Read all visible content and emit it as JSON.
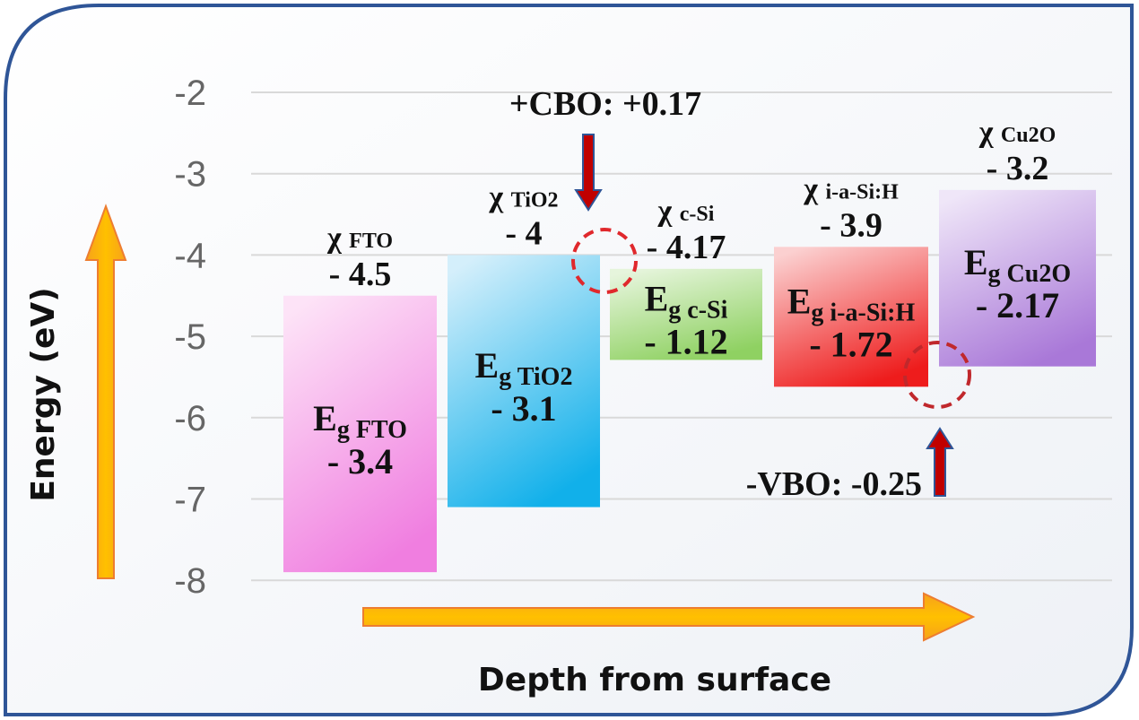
{
  "chart_data": {
    "type": "bar",
    "title": "",
    "xlabel": "Depth from surface",
    "ylabel": "Energy (eV)",
    "ylim": [
      -8,
      -2
    ],
    "yticks": [
      "-2",
      "-3",
      "-4",
      "-5",
      "-6",
      "-7",
      "-8"
    ],
    "grid": true,
    "layers": [
      {
        "name": "FTO",
        "chi": 4.5,
        "eg": 3.4,
        "chi_label": "χ",
        "chi_sub": "FTO",
        "chi_value": "- 4.5",
        "eg_label": "E",
        "eg_sub": "g FTO",
        "eg_value": "- 3.4",
        "color_top": "#fde3f7",
        "color_bottom": "#f07ee0"
      },
      {
        "name": "TiO2",
        "chi": 4.0,
        "eg": 3.1,
        "chi_label": "χ",
        "chi_sub": "TiO2",
        "chi_value": "- 4",
        "eg_label": "E",
        "eg_sub": "g TiO2",
        "eg_value": "- 3.1",
        "color_top": "#d4effb",
        "color_bottom": "#11b0ea"
      },
      {
        "name": "c-Si",
        "chi": 4.17,
        "eg": 1.12,
        "chi_label": "χ",
        "chi_sub": "c-Si",
        "chi_value": "- 4.17",
        "eg_label": "E",
        "eg_sub": "g c-Si",
        "eg_value": "- 1.12",
        "color_top": "#e6f5dc",
        "color_bottom": "#8fd162"
      },
      {
        "name": "i-a-Si:H",
        "chi": 3.9,
        "eg": 1.72,
        "chi_label": "χ",
        "chi_sub": "i-a-Si:H",
        "chi_value": "- 3.9",
        "eg_label": "E",
        "eg_sub": "g i-a-Si:H",
        "eg_value": "- 1.72",
        "color_top": "#fbd0d0",
        "color_bottom": "#ee1c1c"
      },
      {
        "name": "Cu2O",
        "chi": 3.2,
        "eg": 2.17,
        "chi_label": "χ",
        "chi_sub": "Cu2O",
        "chi_value": "- 3.2",
        "eg_label": "E",
        "eg_sub": "g Cu2O",
        "eg_value": "- 2.17",
        "color_top": "#efe6f8",
        "color_bottom": "#a978d8"
      }
    ],
    "annotations": {
      "cbo": "+CBO: +0.17",
      "vbo": "-VBO: -0.25"
    }
  },
  "colors": {
    "frame": "#2f5597",
    "arrow_orange": "#ffc000",
    "arrow_red": "#c00000",
    "circle": "#e0282c"
  }
}
